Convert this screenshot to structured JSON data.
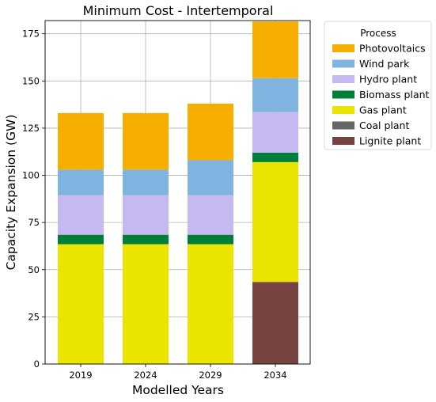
{
  "chart_data": {
    "type": "bar",
    "stacked": true,
    "title": "Minimum Cost - Intertemporal",
    "xlabel": "Modelled Years",
    "ylabel": "Capacity Expansion (GW)",
    "categories": [
      "2019",
      "2024",
      "2029",
      "2034"
    ],
    "ylim": [
      0,
      182
    ],
    "yticks": [
      "0",
      "25",
      "50",
      "75",
      "100",
      "125",
      "150",
      "175"
    ],
    "grid": true,
    "legend_title": "Process",
    "legend_position": "outside-right",
    "series": [
      {
        "name": "Lignite plant",
        "color": "#774340",
        "values": [
          0,
          0,
          0,
          43.5
        ]
      },
      {
        "name": "Coal plant",
        "color": "#666666",
        "values": [
          0,
          0,
          0,
          0
        ]
      },
      {
        "name": "Gas plant",
        "color": "#ebe300",
        "values": [
          63.5,
          63.5,
          63.5,
          63.5
        ]
      },
      {
        "name": "Biomass plant",
        "color": "#017f39",
        "values": [
          5,
          5,
          5,
          5
        ]
      },
      {
        "name": "Hydro plant",
        "color": "#c5b9f0",
        "values": [
          21,
          21,
          21,
          21.5
        ]
      },
      {
        "name": "Wind park",
        "color": "#7fb3e0",
        "values": [
          13.5,
          13.5,
          18.5,
          18
        ]
      },
      {
        "name": "Photovoltaics",
        "color": "#f6af00",
        "values": [
          30,
          30,
          30,
          30
        ]
      }
    ]
  }
}
